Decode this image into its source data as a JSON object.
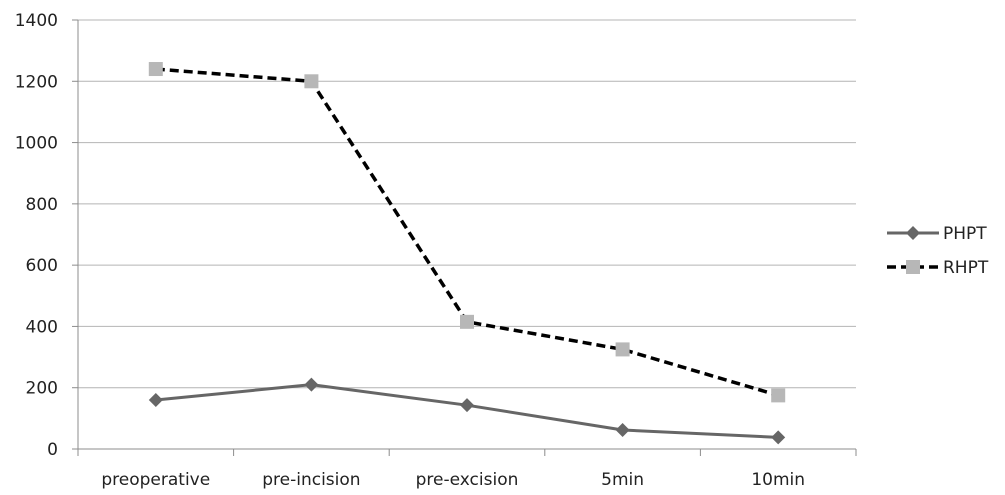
{
  "chart_data": {
    "type": "line",
    "title": "",
    "xlabel": "",
    "ylabel": "",
    "categories": [
      "preoperative",
      "pre-incision",
      "pre-excision",
      "5min",
      "10min"
    ],
    "ylim": [
      0,
      1400
    ],
    "yticks": [
      0,
      200,
      400,
      600,
      800,
      1000,
      1200,
      1400
    ],
    "grid": "horizontal",
    "legend_position": "right",
    "series": [
      {
        "name": "PHPT",
        "values": [
          160,
          210,
          143,
          62,
          38
        ],
        "color": "#666666",
        "line_style": "solid",
        "marker": "diamond"
      },
      {
        "name": "RHPT",
        "values": [
          1240,
          1200,
          415,
          325,
          175
        ],
        "color": "#000000",
        "marker_color": "#b7b7b7",
        "line_style": "dashed",
        "marker": "square"
      }
    ]
  }
}
